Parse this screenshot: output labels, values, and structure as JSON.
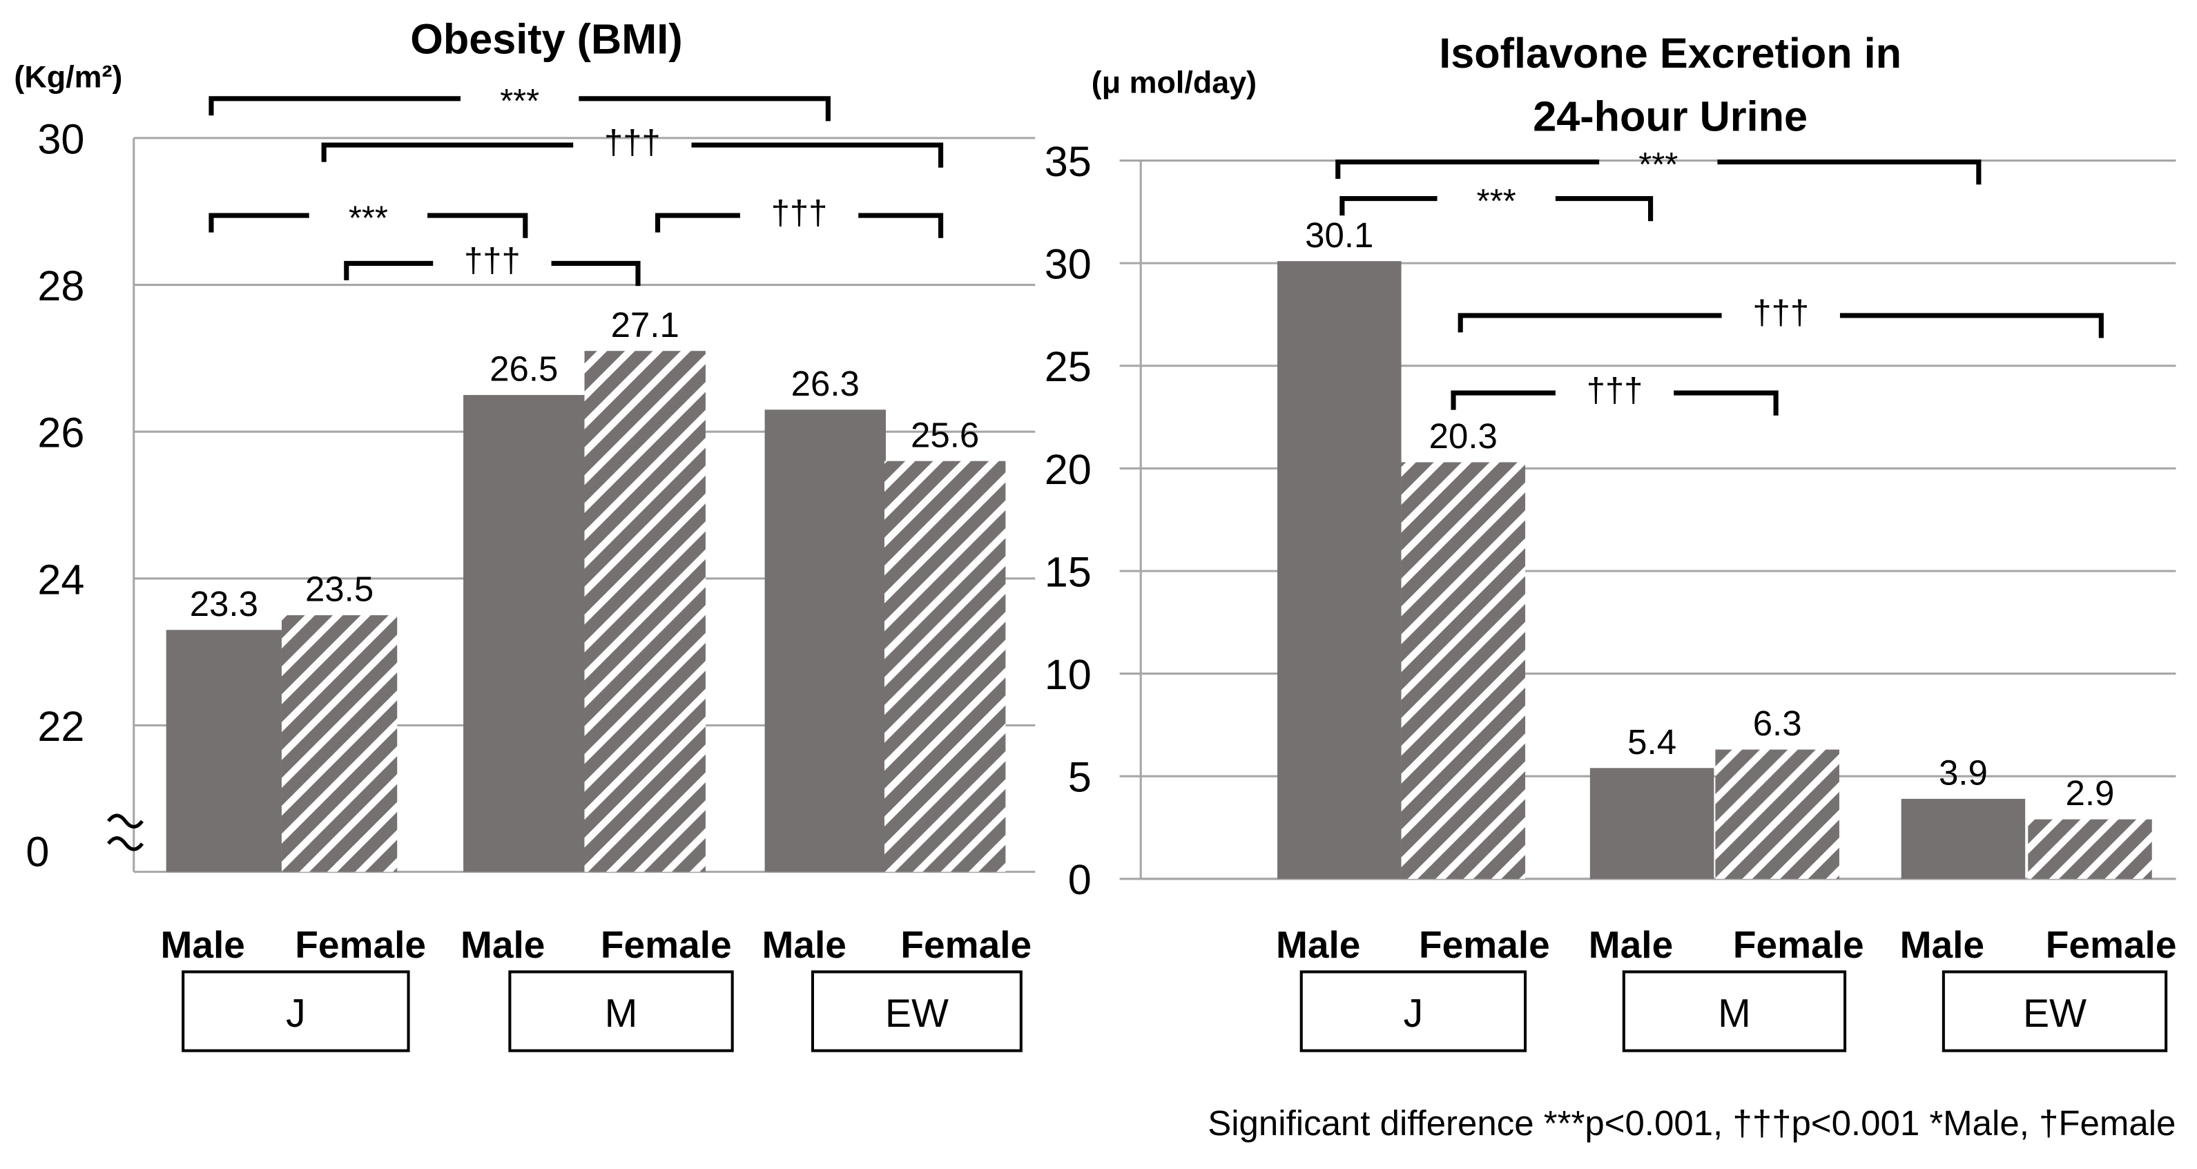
{
  "colors": {
    "bar": "#767171",
    "grid": "#a6a6a6",
    "bracket": "#000000"
  },
  "chart_data": [
    {
      "type": "bar",
      "title": "Obesity (BMI)",
      "ylabel": "(Kg/m²)",
      "ylim": [
        22,
        30
      ],
      "axis_break": true,
      "yticks": [
        30,
        28,
        26,
        24,
        22
      ],
      "yticks_break_label": "0",
      "categories": [
        "J",
        "M",
        "EW"
      ],
      "series_labels": [
        "Male",
        "Female"
      ],
      "series": [
        {
          "name": "Male",
          "values": [
            23.3,
            26.5,
            26.3
          ]
        },
        {
          "name": "Female",
          "values": [
            23.5,
            27.1,
            25.6
          ]
        }
      ],
      "value_labels": [
        [
          "23.3",
          "26.5",
          "26.3"
        ],
        [
          "23.5",
          "27.1",
          "25.6"
        ]
      ],
      "significance": [
        {
          "from": "J Male",
          "to": "EW Male",
          "label": "***"
        },
        {
          "from": "J Female",
          "to": "EW Female",
          "label": "†††"
        },
        {
          "from": "J Male",
          "to": "M Male",
          "label": "***"
        },
        {
          "from": "M Female",
          "to": "EW Female",
          "label": "†††"
        },
        {
          "from": "J Female",
          "to": "M Female",
          "label": "†††"
        }
      ]
    },
    {
      "type": "bar",
      "title": "Isoflavone Excretion in",
      "title_line2": "24-hour Urine",
      "ylabel": "(μ mol/day)",
      "ylim": [
        0,
        35
      ],
      "yticks": [
        35,
        30,
        25,
        20,
        15,
        10,
        5,
        0
      ],
      "categories": [
        "J",
        "M",
        "EW"
      ],
      "series_labels": [
        "Male",
        "Female"
      ],
      "series": [
        {
          "name": "Male",
          "values": [
            30.1,
            5.4,
            3.9
          ]
        },
        {
          "name": "Female",
          "values": [
            20.3,
            6.3,
            2.9
          ]
        }
      ],
      "value_labels": [
        [
          "30.1",
          "5.4",
          "3.9"
        ],
        [
          "20.3",
          "6.3",
          "2.9"
        ]
      ],
      "significance": [
        {
          "from": "J Male",
          "to": "EW Male",
          "label": "***"
        },
        {
          "from": "J Male",
          "to": "M Male",
          "label": "***"
        },
        {
          "from": "J Female",
          "to": "EW Female",
          "label": "†††"
        },
        {
          "from": "J Female",
          "to": "M Female",
          "label": "†††"
        }
      ]
    }
  ],
  "footnote": {
    "prefix": "Significant difference",
    "sym1": "***",
    "p1": "p<0.001,",
    "sym2": "†††",
    "p2": "p<0.001",
    "legend": "*Male, †Female"
  }
}
